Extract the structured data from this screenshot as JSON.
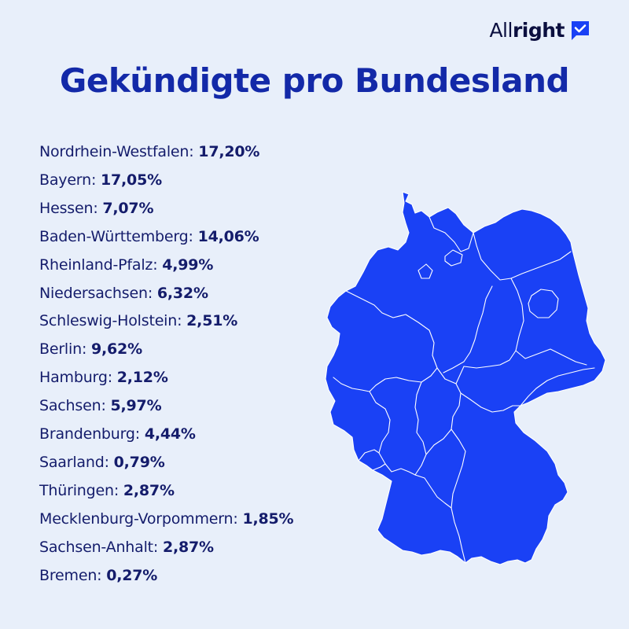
{
  "brand": {
    "name_light": "All",
    "name_bold": "right",
    "icon": "check-chat-bubble-icon"
  },
  "title": "Gekündigte pro Bundesland",
  "colors": {
    "background": "#e8effa",
    "map_fill": "#1a41f5",
    "title": "#1329a8",
    "text": "#141c6b"
  },
  "states": [
    {
      "name": "Nordrhein-Westfalen",
      "value": "17,20%"
    },
    {
      "name": "Bayern",
      "value": "17,05%"
    },
    {
      "name": "Hessen",
      "value": "7,07%"
    },
    {
      "name": "Baden-Württemberg",
      "value": "14,06%"
    },
    {
      "name": "Rheinland-Pfalz",
      "value": "4,99%"
    },
    {
      "name": "Niedersachsen",
      "value": "6,32%"
    },
    {
      "name": "Schleswig-Holstein",
      "value": "2,51%"
    },
    {
      "name": "Berlin",
      "value": "9,62%"
    },
    {
      "name": "Hamburg",
      "value": "2,12%"
    },
    {
      "name": "Sachsen",
      "value": "5,97%"
    },
    {
      "name": "Brandenburg",
      "value": "4,44%"
    },
    {
      "name": "Saarland",
      "value": "0,79%"
    },
    {
      "name": "Thüringen",
      "value": "2,87%"
    },
    {
      "name": "Mecklenburg-Vorpommern",
      "value": "1,85%"
    },
    {
      "name": "Sachsen-Anhalt",
      "value": "2,87%"
    },
    {
      "name": "Bremen",
      "value": "0,27%"
    }
  ]
}
